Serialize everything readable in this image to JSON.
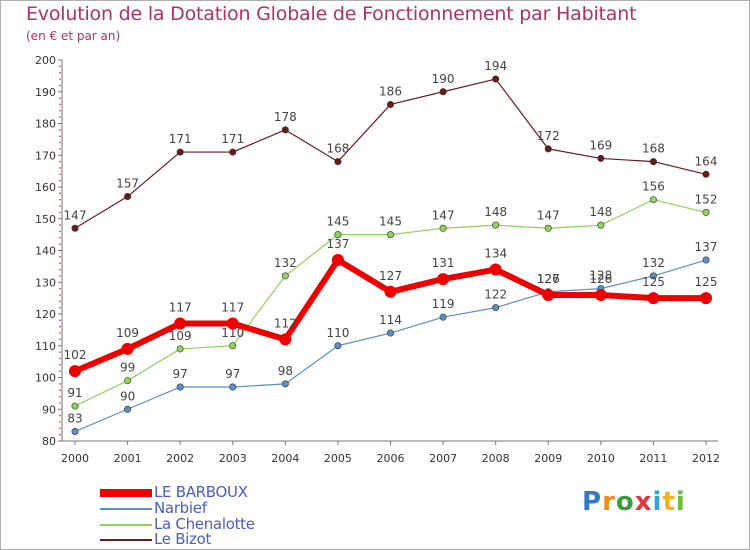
{
  "chart_data": {
    "type": "line",
    "title": "Evolution de la Dotation Globale de Fonctionnement par Habitant",
    "subtitle": "(en € et par an)",
    "xlabel": "",
    "ylabel": "",
    "categories": [
      "2000",
      "2001",
      "2002",
      "2003",
      "2004",
      "2005",
      "2006",
      "2007",
      "2008",
      "2009",
      "2010",
      "2011",
      "2012"
    ],
    "ylim": [
      80,
      200
    ],
    "yticks": [
      80,
      90,
      100,
      110,
      120,
      130,
      140,
      150,
      160,
      170,
      180,
      190,
      200
    ],
    "grid": false,
    "legend_position": "bottom-left",
    "series": [
      {
        "name": "Le Bizot",
        "color": "#6b1a1a",
        "values": [
          147,
          157,
          171,
          171,
          178,
          168,
          186,
          190,
          194,
          172,
          169,
          168,
          164
        ]
      },
      {
        "name": "La Chenalotte",
        "color": "#8ed45c",
        "values": [
          91,
          99,
          109,
          110,
          132,
          145,
          145,
          147,
          148,
          147,
          148,
          156,
          152
        ]
      },
      {
        "name": "Narbief",
        "color": "#5b8fc8",
        "values": [
          83,
          90,
          97,
          97,
          98,
          110,
          114,
          119,
          122,
          127,
          128,
          132,
          137
        ]
      },
      {
        "name": "LE BARBOUX",
        "color": "#ee0000",
        "values": [
          102,
          109,
          117,
          117,
          112,
          137,
          127,
          131,
          134,
          126,
          126,
          125,
          125
        ]
      }
    ]
  },
  "legend": {
    "items": [
      {
        "label": "LE BARBOUX",
        "color": "#ee0000"
      },
      {
        "label": "Narbief",
        "color": "#5b8fc8"
      },
      {
        "label": "La Chenalotte",
        "color": "#8ed45c"
      },
      {
        "label": "Le Bizot",
        "color": "#6b1a1a"
      }
    ]
  },
  "logo": {
    "letters": [
      "P",
      "r",
      "o",
      "x",
      "i",
      "t",
      "i"
    ],
    "colors": [
      "#2e7bc4",
      "#f28c1a",
      "#3a9b3a",
      "#e0383a",
      "#3aa0d8",
      "#f2b01a",
      "#6abf3a"
    ]
  }
}
